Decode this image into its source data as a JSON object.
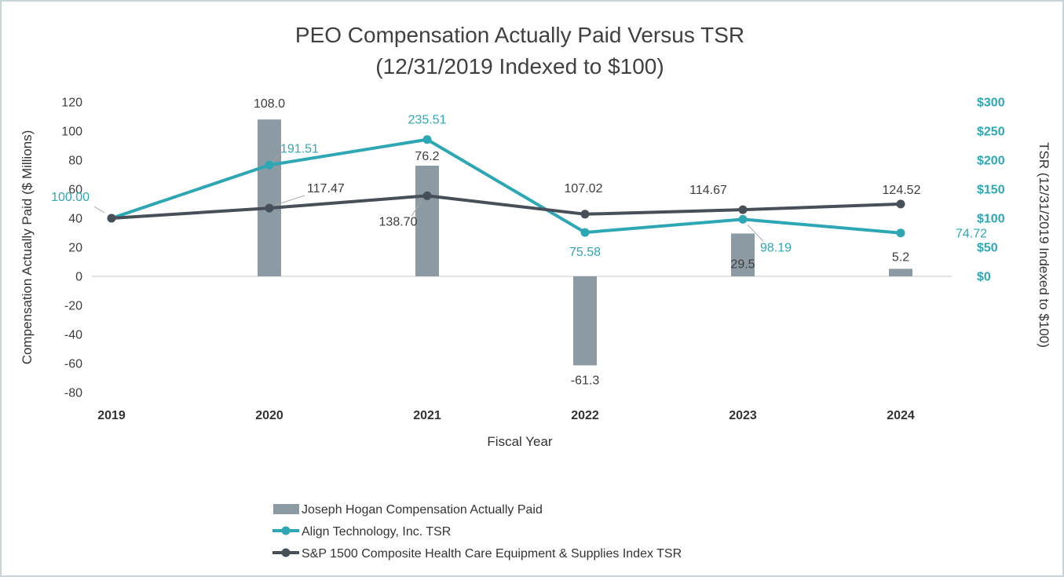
{
  "frame": {
    "border_color": "#C9D4D9",
    "background": "#FFFFFF"
  },
  "chart_data": {
    "type": "combo-bar-line",
    "title_line1": "PEO Compensation Actually Paid Versus TSR",
    "title_line2": "(12/31/2019 Indexed to $100)",
    "xlabel": "Fiscal Year",
    "ylabel_left": "Compensation Actually Paid ($ Millions)",
    "ylabel_right": "TSR (12/31/2019 Indexed to $100)",
    "categories": [
      "2019",
      "2020",
      "2021",
      "2022",
      "2023",
      "2024"
    ],
    "left_axis": {
      "min": -80,
      "max": 120,
      "step": 20
    },
    "right_axis": {
      "min": 0,
      "max": 300,
      "step": 50,
      "prefix": "$"
    },
    "grid": "zero-line-only",
    "legend_position": "bottom-left",
    "colors": {
      "bar": "#8C9BA3",
      "align_tsr": "#2EA7B4",
      "sp_index": "#474F59",
      "grid_line": "#D9D9D9",
      "leader_line": "#A6A6A6",
      "value_label": "#3D3D3D",
      "axis_text": "#333333",
      "title_text": "#404040"
    },
    "series": [
      {
        "name": "Joseph Hogan Compensation Actually Paid",
        "type": "bar",
        "axis": "left",
        "color": "#8C9BA3",
        "label_color": "#3D3D3D",
        "values": [
          null,
          108.0,
          76.2,
          -61.3,
          29.5,
          5.2
        ],
        "labels": [
          "",
          "108.0",
          "76.2",
          "-61.3",
          "29.5",
          "5.2"
        ],
        "label_offsets": [
          null,
          {
            "dy": -15
          },
          {
            "dy": -7
          },
          {
            "dy": 24
          },
          {
            "dy": 44
          },
          {
            "dy": -10
          }
        ]
      },
      {
        "name": "Align Technology, Inc. TSR",
        "type": "line",
        "axis": "right",
        "color": "#2EA7B4",
        "label_color": "#2EA7B4",
        "values": [
          100.0,
          191.51,
          235.51,
          75.58,
          98.19,
          74.72
        ],
        "labels": [
          "100.00",
          "191.51",
          "235.51",
          "75.58",
          "98.19",
          "74.72"
        ],
        "label_offsets": [
          {
            "dx": -28,
            "dy": -22,
            "anchor": "end",
            "leader": [
              -9,
              -7,
              -22,
              -15
            ]
          },
          {
            "dx": 14,
            "dy": -16,
            "anchor": "start",
            "leader": [
              5,
              -5,
              12,
              -13
            ]
          },
          {
            "dx": 0,
            "dy": -20,
            "anchor": "middle"
          },
          {
            "dx": 0,
            "dy": 30,
            "anchor": "middle"
          },
          {
            "dx": 42,
            "dy": 41,
            "anchor": "middle",
            "leader": [
              6,
              7,
              26,
              28
            ]
          },
          {
            "dx": 70,
            "dy": 6,
            "anchor": "start"
          }
        ]
      },
      {
        "name": "S&P 1500 Composite Health Care Equipment & Supplies Index TSR",
        "type": "line",
        "axis": "right",
        "color": "#474F59",
        "label_color": "#3D3D3D",
        "values": [
          100.0,
          117.47,
          138.7,
          107.02,
          114.67,
          124.52
        ],
        "labels": [
          "",
          "117.47",
          "138.70",
          "107.02",
          "114.67",
          "124.52"
        ],
        "label_offsets": [
          null,
          {
            "dx": 48,
            "dy": -20,
            "anchor": "start",
            "leader": [
              8,
              -4,
              45,
              -16
            ]
          },
          {
            "dx": -37,
            "dy": 38,
            "anchor": "middle",
            "leader": [
              -7,
              6,
              -20,
              26
            ]
          },
          {
            "dx": -2,
            "dy": -28,
            "anchor": "middle"
          },
          {
            "dx": -44,
            "dy": -20,
            "anchor": "middle"
          },
          {
            "dx": 1,
            "dy": -13,
            "anchor": "middle"
          }
        ]
      }
    ]
  }
}
